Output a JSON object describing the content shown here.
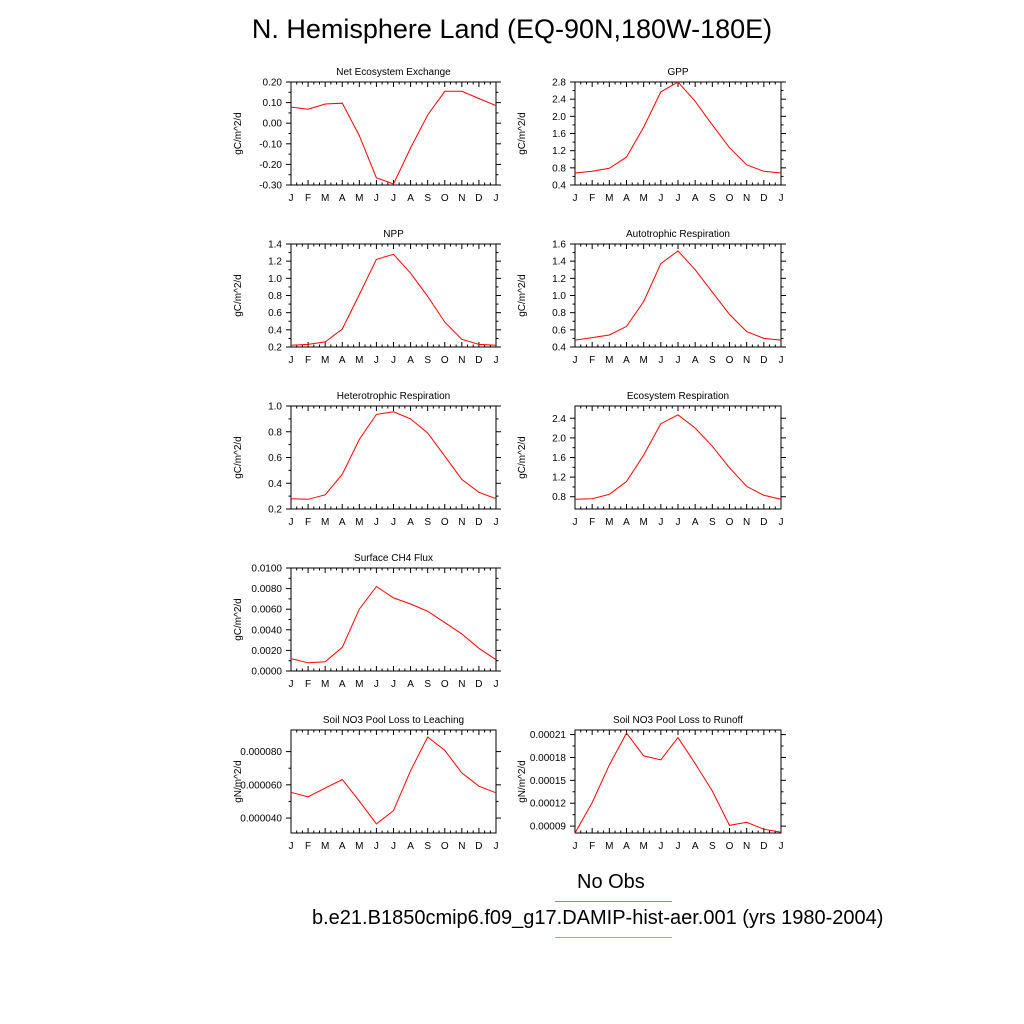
{
  "title": "N. Hemisphere Land (EQ-90N,180W-180E)",
  "legend": {
    "obs_label": "No Obs",
    "obs_color": "#7f7fff",
    "model_label": "b.e21.B1850cmip6.f09_g17.DAMIP-hist-aer.001 (yrs 1980-2004)",
    "model_color": "#ff7f7f"
  },
  "line_color": "#ff0000",
  "chart_data": [
    {
      "type": "line",
      "title": "Net Ecosystem Exchange",
      "ylabel": "gC/m^2/d",
      "categories": [
        "J",
        "F",
        "M",
        "A",
        "M",
        "J",
        "J",
        "A",
        "S",
        "O",
        "N",
        "D",
        "J"
      ],
      "ylim": [
        -0.3,
        0.2
      ],
      "yticks": [
        -0.3,
        -0.2,
        -0.1,
        0.0,
        0.1,
        0.2
      ],
      "ytick_labels": [
        "-0.30",
        "-0.20",
        "-0.10",
        "0.00",
        "0.10",
        "0.20"
      ],
      "values": [
        0.078,
        0.068,
        0.093,
        0.097,
        -0.06,
        -0.265,
        -0.295,
        -0.12,
        0.04,
        0.155,
        0.155,
        0.12,
        0.085
      ]
    },
    {
      "type": "line",
      "title": "GPP",
      "ylabel": "gC/m^2/d",
      "categories": [
        "J",
        "F",
        "M",
        "A",
        "M",
        "J",
        "J",
        "A",
        "S",
        "O",
        "N",
        "D",
        "J"
      ],
      "ylim": [
        0.4,
        2.8
      ],
      "yticks": [
        0.4,
        0.8,
        1.2,
        1.6,
        2.0,
        2.4,
        2.8
      ],
      "ytick_labels": [
        "0.4",
        "0.8",
        "1.2",
        "1.6",
        "2.0",
        "2.4",
        "2.8"
      ],
      "values": [
        0.68,
        0.72,
        0.79,
        1.05,
        1.75,
        2.57,
        2.8,
        2.35,
        1.8,
        1.27,
        0.87,
        0.72,
        0.68
      ]
    },
    {
      "type": "line",
      "title": "NPP",
      "ylabel": "gC/m^2/d",
      "categories": [
        "J",
        "F",
        "M",
        "A",
        "M",
        "J",
        "J",
        "A",
        "S",
        "O",
        "N",
        "D",
        "J"
      ],
      "ylim": [
        0.2,
        1.4
      ],
      "yticks": [
        0.2,
        0.4,
        0.6,
        0.8,
        1.0,
        1.2,
        1.4
      ],
      "ytick_labels": [
        "0.2",
        "0.4",
        "0.6",
        "0.8",
        "1.0",
        "1.2",
        "1.4"
      ],
      "values": [
        0.22,
        0.23,
        0.26,
        0.41,
        0.81,
        1.22,
        1.28,
        1.06,
        0.79,
        0.49,
        0.29,
        0.23,
        0.22
      ]
    },
    {
      "type": "line",
      "title": "Autotrophic Respiration",
      "ylabel": "gC/m^2/d",
      "categories": [
        "J",
        "F",
        "M",
        "A",
        "M",
        "J",
        "J",
        "A",
        "S",
        "O",
        "N",
        "D",
        "J"
      ],
      "ylim": [
        0.4,
        1.6
      ],
      "yticks": [
        0.4,
        0.6,
        0.8,
        1.0,
        1.2,
        1.4,
        1.6
      ],
      "ytick_labels": [
        "0.4",
        "0.6",
        "0.8",
        "1.0",
        "1.2",
        "1.4",
        "1.6"
      ],
      "values": [
        0.48,
        0.51,
        0.54,
        0.64,
        0.93,
        1.37,
        1.52,
        1.3,
        1.04,
        0.78,
        0.58,
        0.5,
        0.48
      ]
    },
    {
      "type": "line",
      "title": "Heterotrophic Respiration",
      "ylabel": "gC/m^2/d",
      "categories": [
        "J",
        "F",
        "M",
        "A",
        "M",
        "J",
        "J",
        "A",
        "S",
        "O",
        "N",
        "D",
        "J"
      ],
      "ylim": [
        0.2,
        1.0
      ],
      "yticks": [
        0.2,
        0.4,
        0.6,
        0.8,
        1.0
      ],
      "ytick_labels": [
        "0.2",
        "0.4",
        "0.6",
        "0.8",
        "1.0"
      ],
      "values": [
        0.28,
        0.275,
        0.31,
        0.47,
        0.74,
        0.935,
        0.955,
        0.9,
        0.79,
        0.61,
        0.43,
        0.33,
        0.28
      ]
    },
    {
      "type": "line",
      "title": "Ecosystem Respiration",
      "ylabel": "gC/m^2/d",
      "categories": [
        "J",
        "F",
        "M",
        "A",
        "M",
        "J",
        "J",
        "A",
        "S",
        "O",
        "N",
        "D",
        "J"
      ],
      "ylim": [
        0.55,
        2.65
      ],
      "yticks": [
        0.8,
        1.2,
        1.6,
        2.0,
        2.4
      ],
      "ytick_labels": [
        "0.8",
        "1.2",
        "1.6",
        "2.0",
        "2.4"
      ],
      "values": [
        0.75,
        0.76,
        0.85,
        1.11,
        1.65,
        2.29,
        2.47,
        2.2,
        1.83,
        1.39,
        1.01,
        0.83,
        0.75
      ]
    },
    {
      "type": "line",
      "title": "Surface CH4 Flux",
      "ylabel": "gC/m^2/d",
      "categories": [
        "J",
        "F",
        "M",
        "A",
        "M",
        "J",
        "J",
        "A",
        "S",
        "O",
        "N",
        "D",
        "J"
      ],
      "ylim": [
        0.0,
        0.01
      ],
      "yticks": [
        0.0,
        0.002,
        0.004,
        0.006,
        0.008,
        0.01
      ],
      "ytick_labels": [
        "0.0000",
        "0.0020",
        "0.0040",
        "0.0060",
        "0.0080",
        "0.0100"
      ],
      "values": [
        0.0012,
        0.0008,
        0.0009,
        0.0023,
        0.006,
        0.0082,
        0.0071,
        0.0065,
        0.0058,
        0.0047,
        0.0036,
        0.0022,
        0.0011
      ]
    },
    {
      "type": "line",
      "title": "Soil NO3 Pool Loss to Leaching",
      "ylabel": "gN/m^2/d",
      "categories": [
        "J",
        "F",
        "M",
        "A",
        "M",
        "J",
        "J",
        "A",
        "S",
        "O",
        "N",
        "D",
        "J"
      ],
      "ylim": [
        3.1e-05,
        9.3e-05
      ],
      "yticks": [
        4e-05,
        6e-05,
        8e-05
      ],
      "ytick_labels": [
        "0.000040",
        "0.000060",
        "0.000080"
      ],
      "values": [
        5.55e-05,
        5.28e-05,
        5.8e-05,
        6.32e-05,
        5.02e-05,
        3.65e-05,
        4.45e-05,
        6.85e-05,
        8.88e-05,
        8.08e-05,
        6.72e-05,
        5.92e-05,
        5.52e-05
      ]
    },
    {
      "type": "line",
      "title": "Soil NO3 Pool Loss to Runoff",
      "ylabel": "gN/m^2/d",
      "categories": [
        "J",
        "F",
        "M",
        "A",
        "M",
        "J",
        "J",
        "A",
        "S",
        "O",
        "N",
        "D",
        "J"
      ],
      "ylim": [
        8.1e-05,
        0.000216
      ],
      "yticks": [
        9e-05,
        0.00012,
        0.00015,
        0.00018,
        0.00021
      ],
      "ytick_labels": [
        "0.00009",
        "0.00012",
        "0.00015",
        "0.00018",
        "0.00021"
      ],
      "values": [
        8.1e-05,
        0.000121,
        0.00017,
        0.000212,
        0.000182,
        0.000177,
        0.000206,
        0.000172,
        0.000136,
        9.1e-05,
        9.5e-05,
        8.6e-05,
        8.2e-05
      ]
    }
  ]
}
